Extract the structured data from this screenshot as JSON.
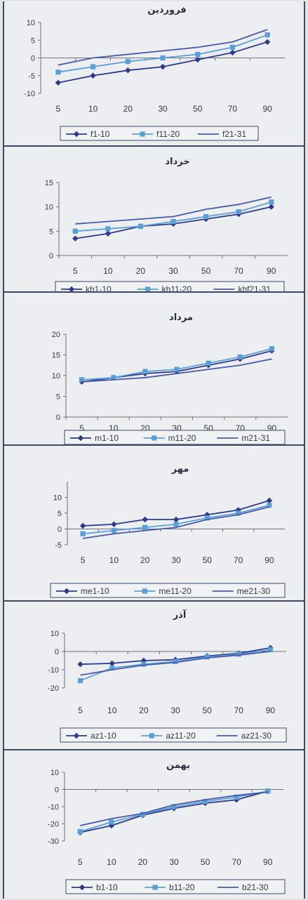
{
  "chart_data": [
    {
      "type": "line",
      "title": "فروردین",
      "categories": [
        "5",
        "10",
        "20",
        "30",
        "50",
        "70",
        "90"
      ],
      "ylim": [
        -10,
        10
      ],
      "yticks": [
        10,
        5,
        0,
        -5,
        -10
      ],
      "legend": "bottom",
      "grid": false,
      "series": [
        {
          "name": "f1-10",
          "marker": "diamond",
          "values": [
            -7,
            -5,
            -3.5,
            -2.5,
            -0.5,
            1.5,
            4.5
          ]
        },
        {
          "name": "f11-20",
          "marker": "square",
          "values": [
            -4,
            -2.5,
            -1,
            0,
            1,
            3,
            6.5
          ]
        },
        {
          "name": "f21-31",
          "marker": "none",
          "values": [
            -2,
            0,
            1,
            2,
            3,
            4.5,
            8
          ]
        }
      ]
    },
    {
      "type": "line",
      "title": "خرداد",
      "categories": [
        "5",
        "10",
        "20",
        "30",
        "50",
        "70",
        "90"
      ],
      "ylim": [
        0,
        15
      ],
      "yticks": [
        15,
        10,
        5,
        0
      ],
      "legend": "bottom",
      "grid": false,
      "series": [
        {
          "name": "kh1-10",
          "marker": "diamond",
          "values": [
            3.5,
            4.5,
            6,
            6.5,
            7.5,
            8.5,
            10
          ]
        },
        {
          "name": "kh11-20",
          "marker": "square",
          "values": [
            5,
            5.5,
            6,
            7,
            8,
            9,
            11
          ]
        },
        {
          "name": "khf21-31",
          "marker": "none",
          "values": [
            6.5,
            7,
            7.5,
            8,
            9.5,
            10.5,
            12
          ]
        }
      ]
    },
    {
      "type": "line",
      "title": "مرداد",
      "categories": [
        "5",
        "10",
        "20",
        "30",
        "50",
        "70",
        "90"
      ],
      "ylim": [
        0,
        20
      ],
      "yticks": [
        20,
        15,
        10,
        5,
        0
      ],
      "legend": "bottom",
      "grid": false,
      "series": [
        {
          "name": "m1-10",
          "marker": "diamond",
          "values": [
            8.5,
            9.5,
            10.5,
            11,
            12.5,
            14,
            16
          ]
        },
        {
          "name": "m11-20",
          "marker": "square",
          "values": [
            9,
            9.5,
            11,
            11.5,
            13,
            14.5,
            16.5
          ]
        },
        {
          "name": "m21-31",
          "marker": "none",
          "values": [
            8.5,
            9,
            9.5,
            10.5,
            11.5,
            12.5,
            14
          ]
        }
      ]
    },
    {
      "type": "line",
      "title": "مهر",
      "categories": [
        "5",
        "10",
        "20",
        "30",
        "50",
        "70",
        "90"
      ],
      "ylim": [
        -5,
        15
      ],
      "yticks": [
        10,
        5,
        0,
        -5
      ],
      "legend": "bottom",
      "grid": false,
      "series": [
        {
          "name": "me1-10",
          "marker": "diamond",
          "values": [
            1,
            1.5,
            3,
            3,
            4.5,
            6,
            9
          ]
        },
        {
          "name": "me11-20",
          "marker": "square",
          "values": [
            -1.5,
            -0.5,
            0.5,
            1.5,
            3.5,
            5,
            7.5
          ]
        },
        {
          "name": "me21-30",
          "marker": "none",
          "values": [
            -3,
            -1.5,
            -0.5,
            0.5,
            3,
            4.5,
            7
          ]
        }
      ]
    },
    {
      "type": "line",
      "title": "آذر",
      "categories": [
        "5",
        "10",
        "20",
        "30",
        "50",
        "70",
        "90"
      ],
      "ylim": [
        -20,
        10
      ],
      "yticks": [
        10,
        0,
        -10,
        -20
      ],
      "legend": "bottom",
      "grid": false,
      "series": [
        {
          "name": "az1-10",
          "marker": "diamond",
          "values": [
            -7,
            -6.5,
            -5,
            -4.5,
            -2.5,
            -1,
            2
          ]
        },
        {
          "name": "az11-20",
          "marker": "square",
          "values": [
            -16,
            -9,
            -7,
            -5.5,
            -3,
            -1.5,
            1
          ]
        },
        {
          "name": "az21-30",
          "marker": "none",
          "values": [
            -13,
            -10,
            -7.5,
            -6,
            -3.5,
            -2,
            0
          ]
        }
      ]
    },
    {
      "type": "line",
      "title": "بهمن",
      "categories": [
        "5",
        "10",
        "20",
        "30",
        "50",
        "70",
        "90"
      ],
      "ylim": [
        -30,
        10
      ],
      "yticks": [
        10,
        0,
        -10,
        -20,
        -30
      ],
      "legend": "bottom",
      "grid": false,
      "series": [
        {
          "name": "b1-10",
          "marker": "diamond",
          "values": [
            -25,
            -21,
            -15,
            -11,
            -8,
            -6,
            -1
          ]
        },
        {
          "name": "b11-20",
          "marker": "square",
          "values": [
            -24.5,
            -19,
            -14.5,
            -10,
            -7,
            -4.5,
            -1
          ]
        },
        {
          "name": "b21-30",
          "marker": "none",
          "values": [
            -21,
            -17,
            -14,
            -9,
            -6,
            -3.5,
            -1.5
          ]
        }
      ]
    }
  ]
}
